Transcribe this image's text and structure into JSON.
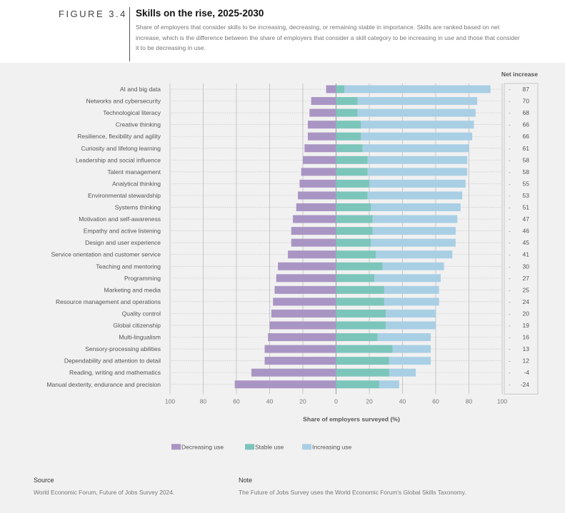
{
  "header": {
    "figure_label": "FIGURE 3.4",
    "title": "Skills on the rise, 2025-2030",
    "subtitle": "Share of employers that consider skills to be increasing, decreasing, or remaining stable in importance. Skills are ranked based on net increase, which is the difference between the share of employers that consider a skill category to be increasing in use and those that consider it to be decreasing in use."
  },
  "chart_data": {
    "type": "bar",
    "orientation": "horizontal",
    "stacked": "diverging",
    "xlabel": "Share of employers surveyed (%)",
    "x_tick_labels": [
      "100",
      "80",
      "60",
      "40",
      "20",
      "0",
      "20",
      "40",
      "60",
      "80",
      "100"
    ],
    "xlim": [
      -100,
      100
    ],
    "net_header": "Net increase",
    "legend_position": "bottom-left",
    "colors": {
      "decreasing": "#a995c4",
      "stable": "#7cc5ba",
      "increasing": "#a9cfe5"
    },
    "series_names": [
      "Decreasing use",
      "Stable use",
      "Increasing use"
    ],
    "rows": [
      {
        "label": "AI and big data",
        "decreasing": 6,
        "stable": 5,
        "increasing": 88,
        "net": "87"
      },
      {
        "label": "Networks and cybersecurity",
        "decreasing": 15,
        "stable": 13,
        "increasing": 72,
        "net": "70"
      },
      {
        "label": "Technological literacy",
        "decreasing": 16,
        "stable": 13,
        "increasing": 71,
        "net": "68"
      },
      {
        "label": "Creative thinking",
        "decreasing": 17,
        "stable": 15,
        "increasing": 68,
        "net": "66"
      },
      {
        "label": "Resilience, flexibility and agility",
        "decreasing": 17,
        "stable": 15,
        "increasing": 67,
        "net": "66"
      },
      {
        "label": "Curiosity and lifelong learning",
        "decreasing": 19,
        "stable": 16,
        "increasing": 64,
        "net": "61"
      },
      {
        "label": "Leadership and social influence",
        "decreasing": 20,
        "stable": 19,
        "increasing": 60,
        "net": "58"
      },
      {
        "label": "Talent management",
        "decreasing": 21,
        "stable": 19,
        "increasing": 60,
        "net": "58"
      },
      {
        "label": "Analytical thinking",
        "decreasing": 22,
        "stable": 20,
        "increasing": 58,
        "net": "55"
      },
      {
        "label": "Environmental stewardship",
        "decreasing": 23,
        "stable": 19,
        "increasing": 57,
        "net": "53"
      },
      {
        "label": "Systems thinking",
        "decreasing": 24,
        "stable": 21,
        "increasing": 54,
        "net": "51"
      },
      {
        "label": "Motivation and self-awareness",
        "decreasing": 26,
        "stable": 22,
        "increasing": 51,
        "net": "47"
      },
      {
        "label": "Empathy and active listening",
        "decreasing": 27,
        "stable": 22,
        "increasing": 50,
        "net": "46"
      },
      {
        "label": "Design and user experience",
        "decreasing": 27,
        "stable": 21,
        "increasing": 51,
        "net": "45"
      },
      {
        "label": "Service orientation and customer service",
        "decreasing": 29,
        "stable": 24,
        "increasing": 46,
        "net": "41"
      },
      {
        "label": "Teaching and mentoring",
        "decreasing": 35,
        "stable": 28,
        "increasing": 37,
        "net": "30"
      },
      {
        "label": "Programming",
        "decreasing": 36,
        "stable": 23,
        "increasing": 40,
        "net": "27"
      },
      {
        "label": "Marketing and media",
        "decreasing": 37,
        "stable": 29,
        "increasing": 33,
        "net": "25"
      },
      {
        "label": "Resource management and operations",
        "decreasing": 38,
        "stable": 29,
        "increasing": 33,
        "net": "24"
      },
      {
        "label": "Quality control",
        "decreasing": 39,
        "stable": 30,
        "increasing": 30,
        "net": "20"
      },
      {
        "label": "Global citizenship",
        "decreasing": 40,
        "stable": 30,
        "increasing": 30,
        "net": "19"
      },
      {
        "label": "Multi-lingualism",
        "decreasing": 41,
        "stable": 25,
        "increasing": 32,
        "net": "16"
      },
      {
        "label": "Sensory-processing abilities",
        "decreasing": 43,
        "stable": 34,
        "increasing": 23,
        "net": "13"
      },
      {
        "label": "Dependability and attention to detail",
        "decreasing": 43,
        "stable": 32,
        "increasing": 25,
        "net": "12"
      },
      {
        "label": "Reading, writing and mathematics",
        "decreasing": 51,
        "stable": 32,
        "increasing": 16,
        "net": "-4"
      },
      {
        "label": "Manual dexterity, endurance and precision",
        "decreasing": 61,
        "stable": 26,
        "increasing": 12,
        "net": "-24"
      }
    ]
  },
  "footer": {
    "source_heading": "Source",
    "source_text": "World Economic Forum, Future of Jobs Survey 2024.",
    "note_heading": "Note",
    "note_text": "The Future of Jobs Survey uses the World Economic Forum's Global Skills Taxonomy."
  }
}
